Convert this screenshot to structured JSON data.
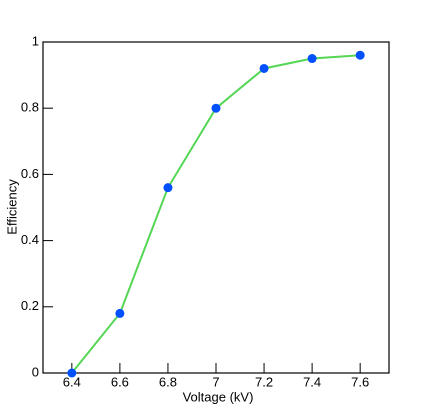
{
  "chart_data": {
    "type": "line",
    "x_label": "Voltage (kV)",
    "y_label": "Efficiency",
    "x": [
      6.4,
      6.6,
      6.8,
      7.0,
      7.2,
      7.4,
      7.6
    ],
    "series": [
      {
        "color": "#55d655",
        "marker_color": "#0050ff",
        "values": [
          0,
          0.18,
          0.56,
          0.8,
          0.92,
          0.95,
          0.96
        ]
      }
    ],
    "xlim": [
      6.28,
      7.72
    ],
    "ylim": [
      0,
      1
    ],
    "xticks": [
      6.4,
      6.6,
      6.8,
      7,
      7.2,
      7.4,
      7.6
    ],
    "yticks": [
      0,
      0.2,
      0.4,
      0.6,
      0.8,
      1
    ],
    "grid": false
  }
}
